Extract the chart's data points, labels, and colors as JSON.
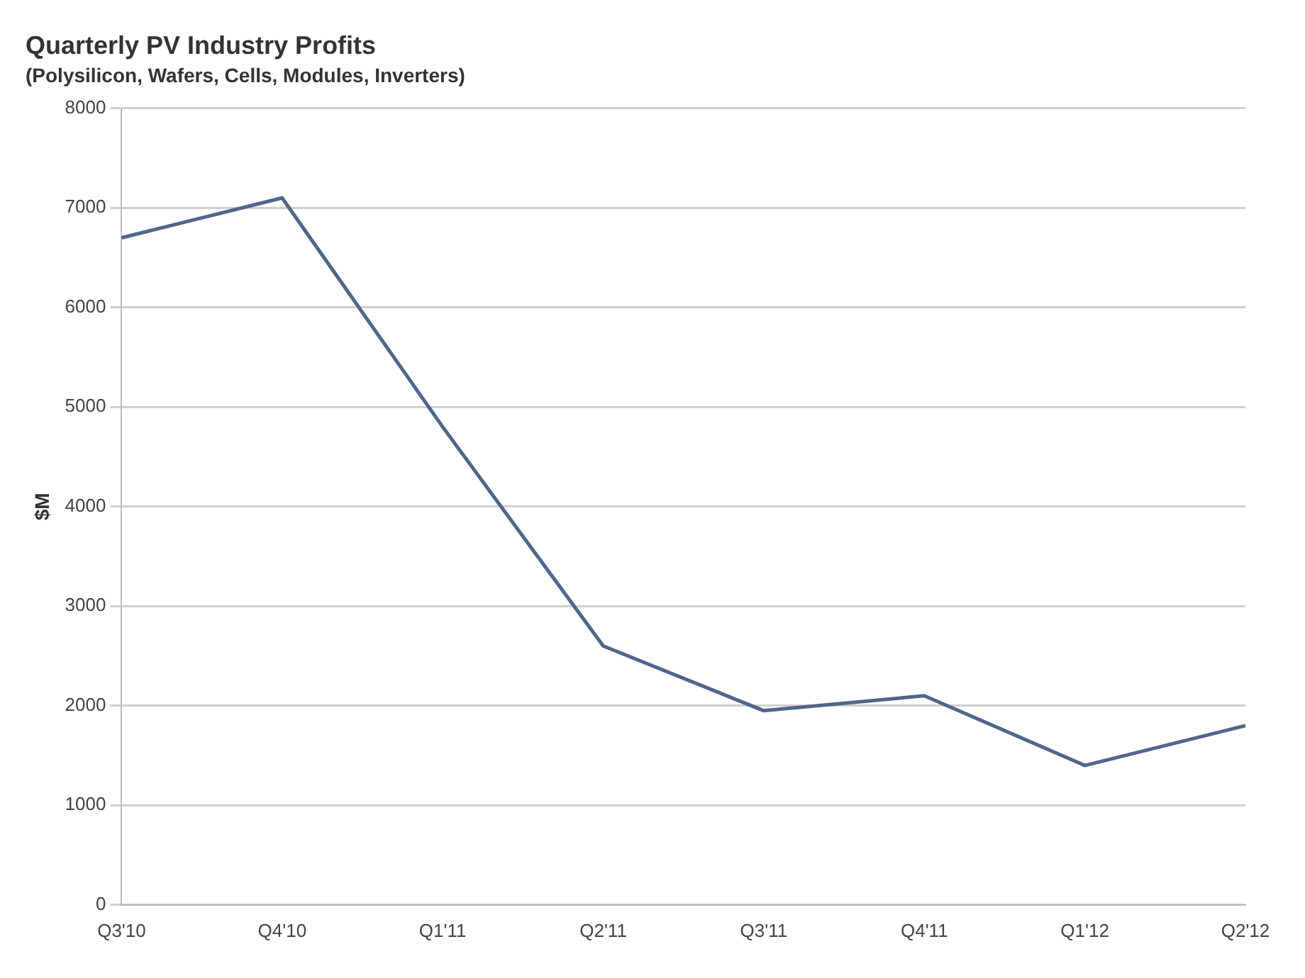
{
  "chart_data": {
    "type": "line",
    "title": "Quarterly PV Industry Profits",
    "subtitle": "(Polysilicon, Wafers, Cells, Modules, Inverters)",
    "ylabel": "$M",
    "categories": [
      "Q3'10",
      "Q4'10",
      "Q1'11",
      "Q2'11",
      "Q3'11",
      "Q4'11",
      "Q1'12",
      "Q2'12"
    ],
    "series": [
      {
        "color": "#50668a",
        "values": [
          6700,
          7100,
          4800,
          2600,
          1950,
          2100,
          1400,
          1800
        ]
      }
    ],
    "ylim": [
      0,
      8000
    ],
    "yticks": [
      0,
      1000,
      2000,
      3000,
      4000,
      5000,
      6000,
      7000,
      8000
    ],
    "grid": "y",
    "legend": false,
    "marker": "none",
    "line_style": "solid"
  }
}
